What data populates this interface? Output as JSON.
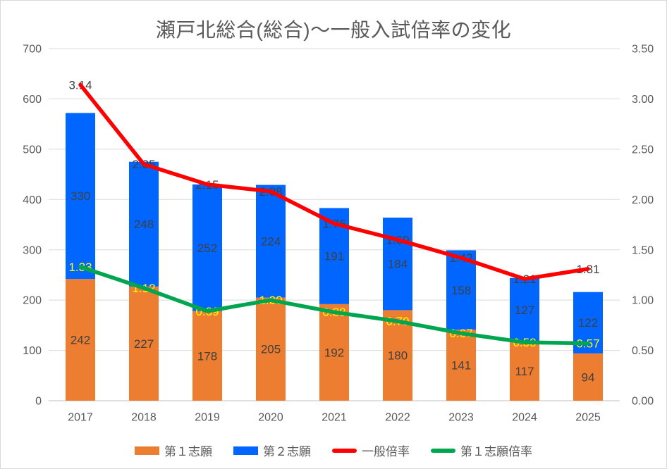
{
  "chart_data": {
    "type": "combo-stacked-bar-line",
    "title": "瀬戸北総合(総合)～一般入試倍率の変化",
    "categories": [
      "2017",
      "2018",
      "2019",
      "2020",
      "2021",
      "2022",
      "2023",
      "2024",
      "2025"
    ],
    "series": [
      {
        "name": "第１志願",
        "kind": "bar",
        "axis": "left",
        "color": "#ED7D31",
        "values": [
          242,
          227,
          178,
          205,
          192,
          180,
          141,
          117,
          94
        ],
        "labels": [
          "242",
          "227",
          "178",
          "205",
          "192",
          "180",
          "141",
          "117",
          "94"
        ],
        "label_color": "#404040"
      },
      {
        "name": "第２志願",
        "kind": "bar",
        "axis": "left",
        "color": "#0066FF",
        "values": [
          330,
          248,
          252,
          224,
          191,
          184,
          158,
          127,
          122
        ],
        "labels": [
          "330",
          "248",
          "252",
          "224",
          "191",
          "184",
          "158",
          "127",
          "122"
        ],
        "label_color": "#404040"
      },
      {
        "name": "一般倍率",
        "kind": "line",
        "axis": "right",
        "color": "#FF0000",
        "values": [
          3.14,
          2.35,
          2.15,
          2.08,
          1.76,
          1.6,
          1.42,
          1.21,
          1.31
        ],
        "labels": [
          "3.14",
          "2.35",
          "2.15",
          "2.08",
          "1.76",
          "1.60",
          "1.42",
          "1.21",
          "1.31"
        ],
        "label_color": "#404040"
      },
      {
        "name": "第１志願倍率",
        "kind": "line",
        "axis": "right",
        "color": "#00A64F",
        "values": [
          1.33,
          1.12,
          0.89,
          1.0,
          0.88,
          0.79,
          0.67,
          0.58,
          0.57
        ],
        "labels": [
          "1.33",
          "1.12",
          "0.89",
          "1.00",
          "0.88",
          "0.79",
          "0.67",
          "0.58",
          "0.57"
        ],
        "label_color": "#FFFF00"
      }
    ],
    "left_axis": {
      "min": 0,
      "max": 700,
      "ticks": [
        "0",
        "100",
        "200",
        "300",
        "400",
        "500",
        "600",
        "700"
      ]
    },
    "right_axis": {
      "min": 0,
      "max": 3.5,
      "ticks": [
        "0.00",
        "0.50",
        "1.00",
        "1.50",
        "2.00",
        "2.50",
        "3.00",
        "3.50"
      ]
    },
    "grid": true,
    "legend_position": "bottom"
  },
  "colors": {
    "text": "#595959",
    "data_label": "#404040",
    "gridline": "#D9D9D9",
    "axis_line": "#BFBFBF",
    "background": "#FFFFFF",
    "border": "#D9D9D9"
  }
}
